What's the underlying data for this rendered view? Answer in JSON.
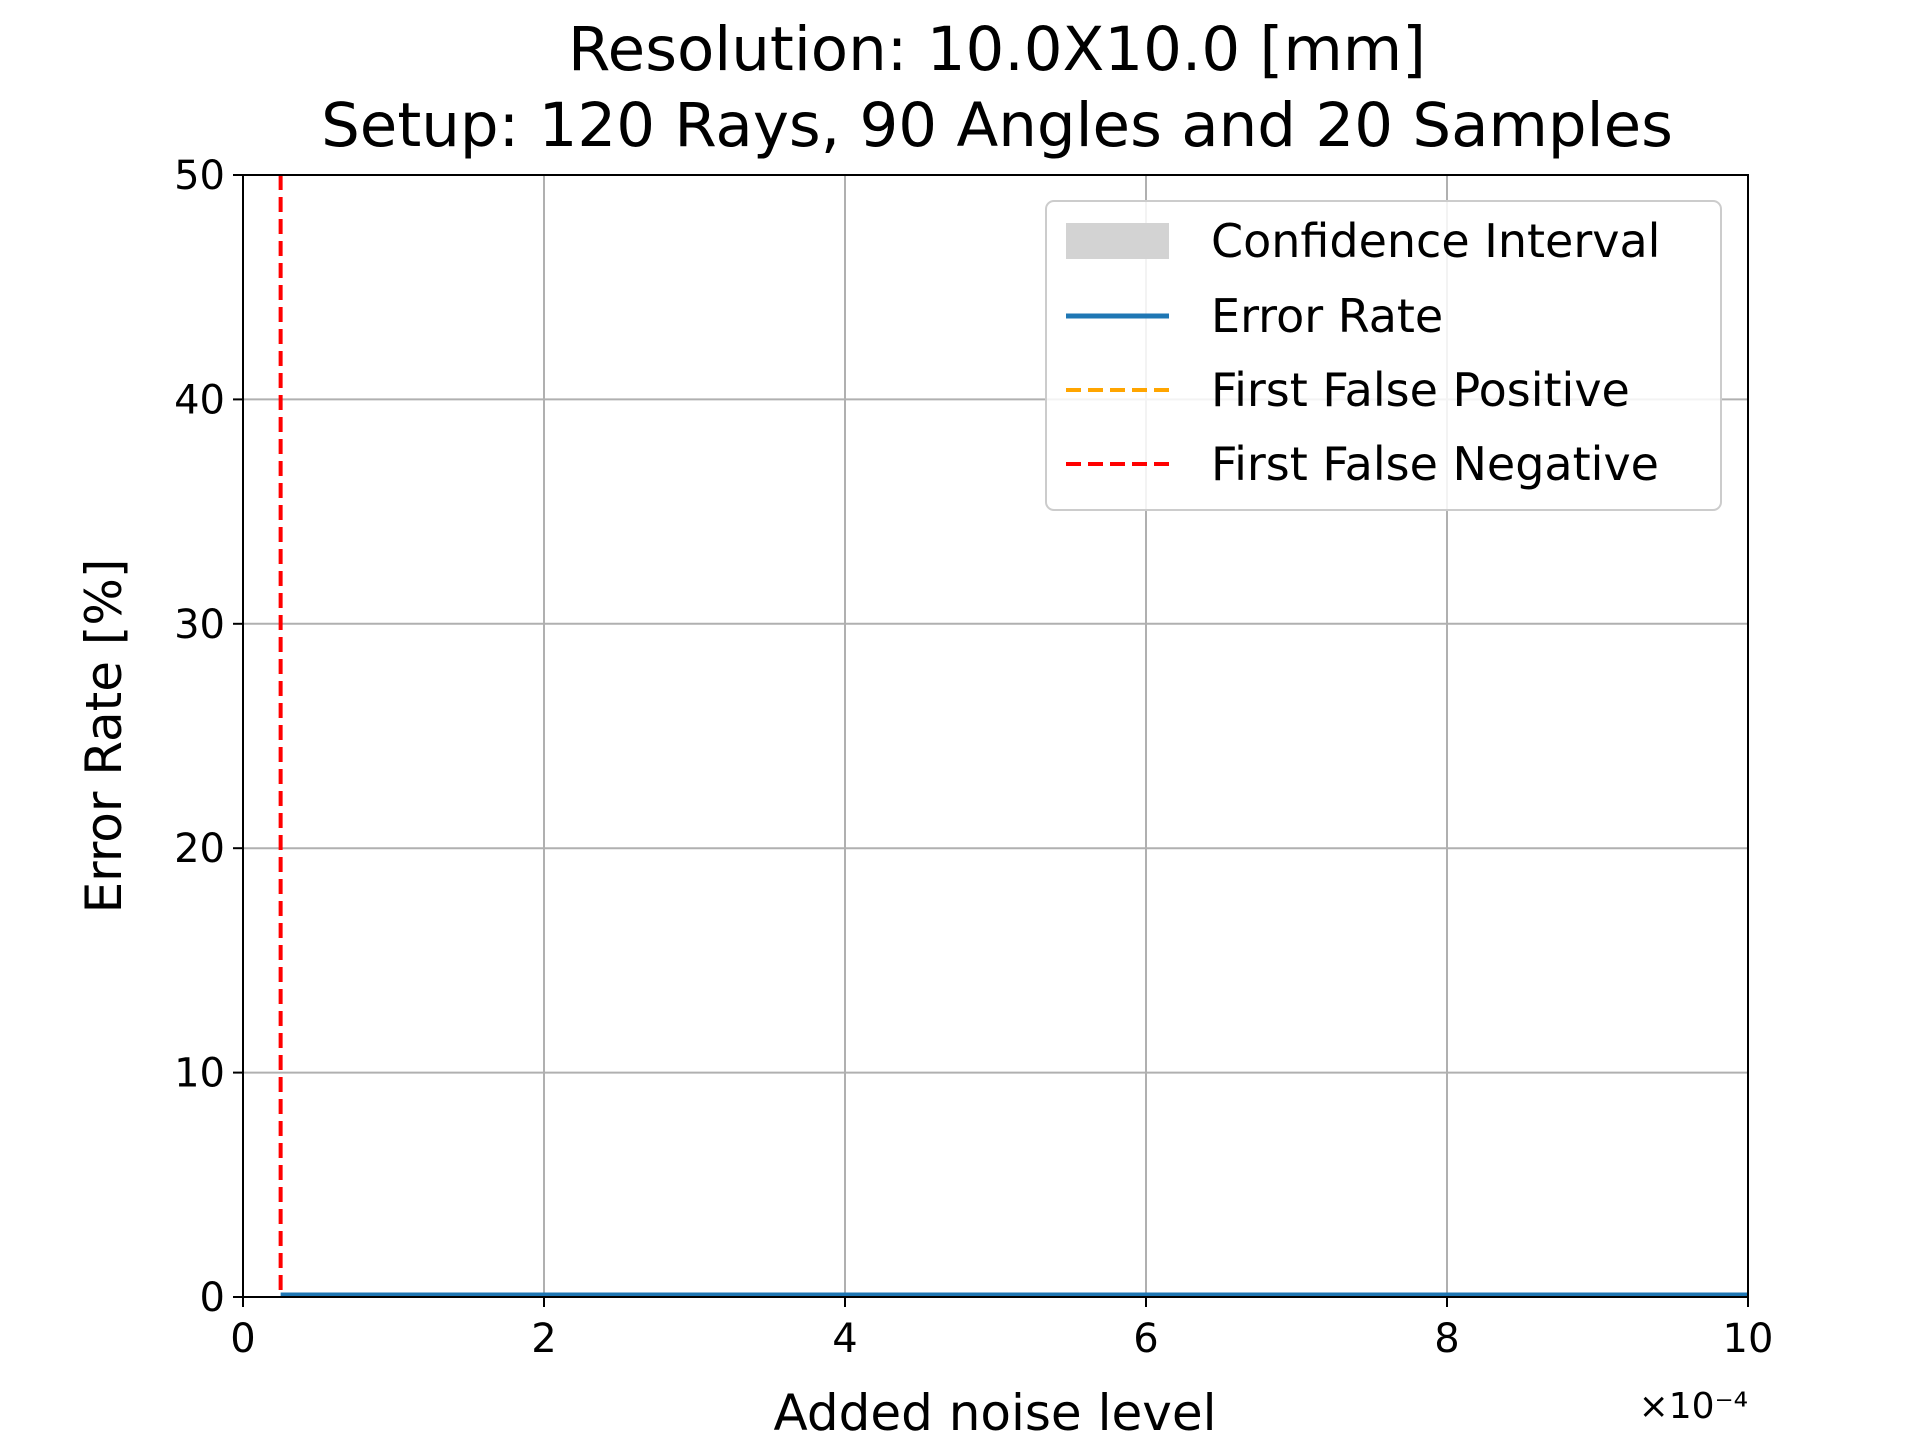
{
  "chart_data": {
    "type": "line",
    "title_lines": [
      "Resolution: 10.0X10.0 [mm]",
      "Setup: 120 Rays, 90 Angles and 20 Samples"
    ],
    "xlabel": "Added noise level",
    "ylabel": "Error Rate [%]",
    "x_offset_text": "×10⁻⁴",
    "xlim": [
      0,
      10
    ],
    "ylim": [
      0,
      50
    ],
    "x_ticks": [
      0,
      2,
      4,
      6,
      8,
      10
    ],
    "x_tick_labels": [
      "0",
      "2",
      "4",
      "6",
      "8",
      "10"
    ],
    "y_ticks": [
      0,
      10,
      20,
      30,
      40,
      50
    ],
    "y_tick_labels": [
      "0",
      "10",
      "20",
      "30",
      "40",
      "50"
    ],
    "grid": true,
    "legend_position": "top-right",
    "series": [
      {
        "name": "Error Rate",
        "kind": "line",
        "color": "#1f77b4",
        "x": [
          0.25,
          10
        ],
        "y": [
          0,
          0
        ]
      }
    ],
    "confidence_interval": {
      "name": "Confidence Interval",
      "color": "#d3d3d3",
      "x": [
        0.25,
        10
      ],
      "lower": [
        0,
        0
      ],
      "upper": [
        0,
        0
      ]
    },
    "vertical_lines": [
      {
        "name": "First False Positive",
        "x": null,
        "color": "#ffa500",
        "style": "dashed"
      },
      {
        "name": "First False Negative",
        "x": 0.25,
        "color": "#ff0000",
        "style": "dashed"
      }
    ],
    "legend": [
      {
        "label": "Confidence Interval",
        "kind": "patch",
        "color": "#d3d3d3"
      },
      {
        "label": "Error Rate",
        "kind": "line",
        "color": "#1f77b4"
      },
      {
        "label": "First False Positive",
        "kind": "dashed",
        "color": "#ffa500"
      },
      {
        "label": "First False Negative",
        "kind": "dashed",
        "color": "#ff0000"
      }
    ]
  }
}
